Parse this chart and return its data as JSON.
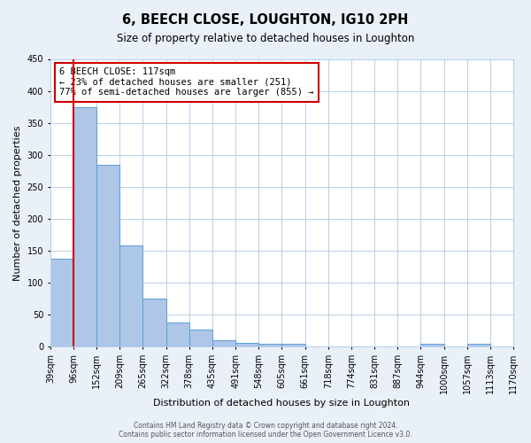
{
  "title": "6, BEECH CLOSE, LOUGHTON, IG10 2PH",
  "subtitle": "Size of property relative to detached houses in Loughton",
  "xlabel": "Distribution of detached houses by size in Loughton",
  "ylabel": "Number of detached properties",
  "bin_labels": [
    "39sqm",
    "96sqm",
    "152sqm",
    "209sqm",
    "265sqm",
    "322sqm",
    "378sqm",
    "435sqm",
    "491sqm",
    "548sqm",
    "605sqm",
    "661sqm",
    "718sqm",
    "774sqm",
    "831sqm",
    "887sqm",
    "944sqm",
    "1000sqm",
    "1057sqm",
    "1113sqm",
    "1170sqm"
  ],
  "bar_heights": [
    137,
    375,
    285,
    158,
    75,
    38,
    27,
    10,
    6,
    5,
    5,
    0,
    0,
    0,
    0,
    0,
    4,
    0,
    4,
    0
  ],
  "bar_color": "#aec6e8",
  "bar_edge_color": "#5a9fd4",
  "vline_x": 1.0,
  "vline_color": "#cc0000",
  "ylim": [
    0,
    450
  ],
  "yticks": [
    0,
    50,
    100,
    150,
    200,
    250,
    300,
    350,
    400,
    450
  ],
  "annotation_title": "6 BEECH CLOSE: 117sqm",
  "annotation_line1": "← 23% of detached houses are smaller (251)",
  "annotation_line2": "77% of semi-detached houses are larger (855) →",
  "annotation_box_color": "#cc0000",
  "footer_line1": "Contains HM Land Registry data © Crown copyright and database right 2024.",
  "footer_line2": "Contains public sector information licensed under the Open Government Licence v3.0.",
  "bg_color": "#eaf0f8",
  "plot_bg_color": "#ffffff",
  "grid_color": "#b8cfe8"
}
